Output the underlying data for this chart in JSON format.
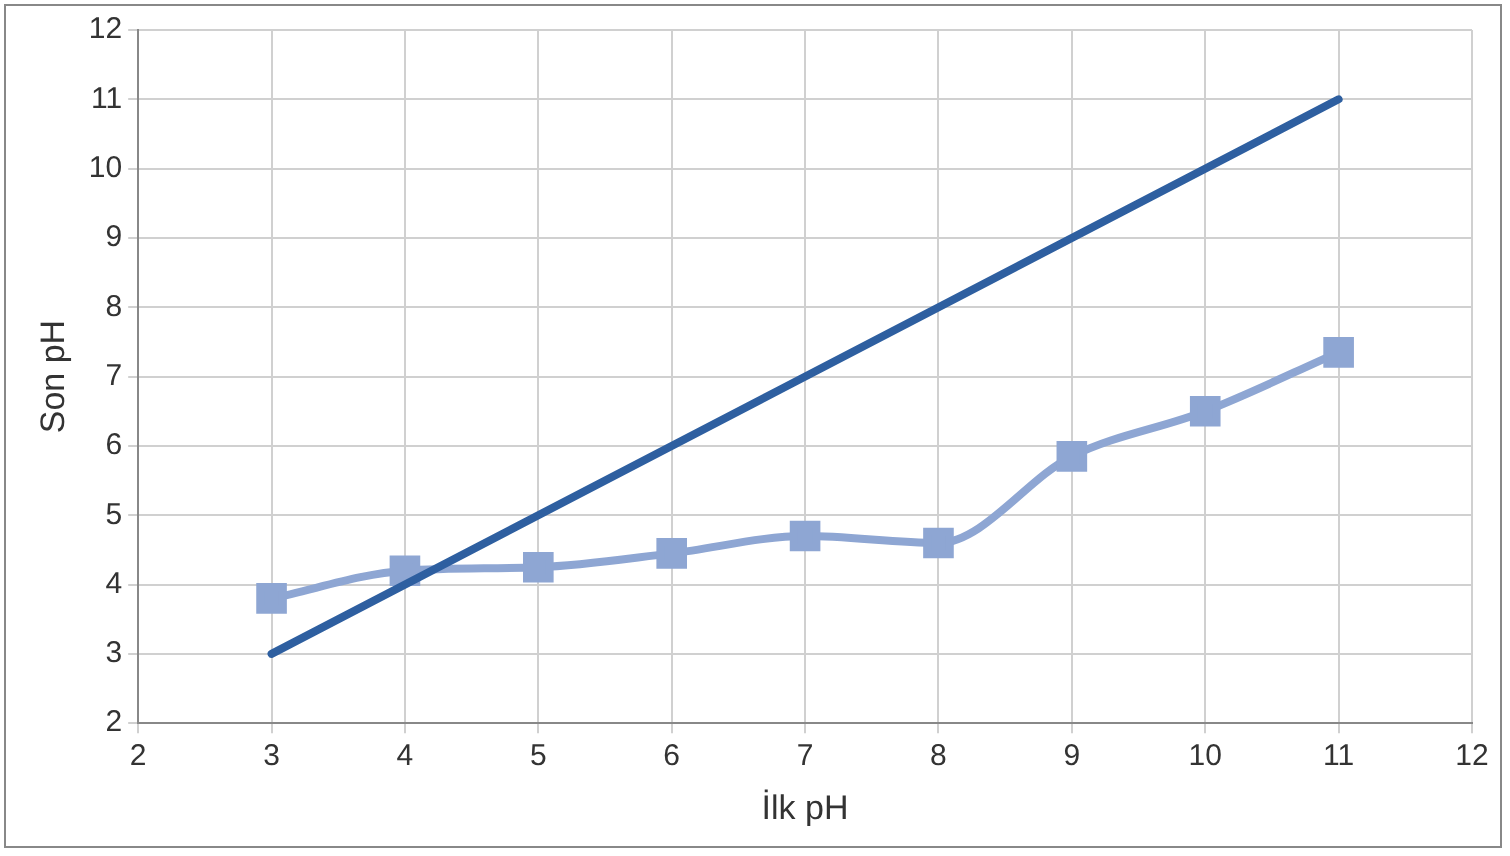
{
  "chart_data": {
    "type": "line",
    "xlabel": "İlk pH",
    "ylabel": "Son pH",
    "xlim": [
      2,
      12
    ],
    "xticks": [
      2,
      3,
      4,
      5,
      6,
      7,
      8,
      9,
      10,
      11,
      12
    ],
    "ylim": [
      2,
      12
    ],
    "yticks": [
      2,
      3,
      4,
      5,
      6,
      7,
      8,
      9,
      10,
      11,
      12
    ],
    "grid": true,
    "legend": false,
    "series": [
      {
        "color": "#2e5fa0",
        "marker": "none",
        "x": [
          3,
          11
        ],
        "values": [
          3,
          11
        ]
      },
      {
        "color": "#8ea6d3",
        "marker": "square",
        "x": [
          3,
          4,
          5,
          6,
          7,
          8,
          9,
          10,
          11
        ],
        "values": [
          3.8,
          4.2,
          4.25,
          4.45,
          4.7,
          4.6,
          5.85,
          6.5,
          7.35
        ]
      }
    ]
  }
}
